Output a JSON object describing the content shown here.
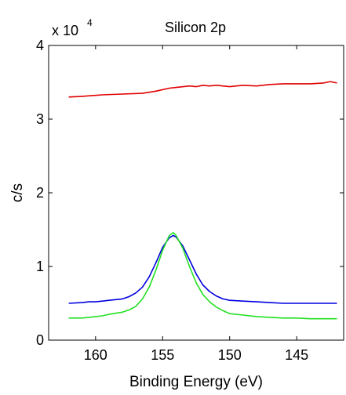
{
  "chart_data": {
    "type": "line",
    "title": "Silicon 2p",
    "xlabel": "Binding Energy (eV)",
    "ylabel": "c/s",
    "y_multiplier": {
      "base": "x 10",
      "exponent": "4"
    },
    "xlim": [
      163.5,
      141.5
    ],
    "ylim": [
      0,
      4
    ],
    "x_reversed": true,
    "x_ticks": [
      160,
      155,
      150,
      145
    ],
    "y_ticks": [
      0,
      1,
      2,
      3,
      4
    ],
    "grid": false,
    "series": [
      {
        "color": "#e00000",
        "x": [
          162,
          161,
          159.5,
          158,
          156.5,
          155.5,
          154.5,
          154,
          153,
          152.5,
          152,
          151.5,
          151,
          150,
          149.5,
          149,
          148,
          147,
          146,
          145,
          144,
          143,
          142.5,
          142
        ],
        "y": [
          3.3,
          3.31,
          3.33,
          3.34,
          3.35,
          3.38,
          3.42,
          3.43,
          3.45,
          3.44,
          3.46,
          3.45,
          3.46,
          3.44,
          3.45,
          3.46,
          3.45,
          3.47,
          3.48,
          3.48,
          3.48,
          3.49,
          3.51,
          3.49
        ]
      },
      {
        "color": "#0000e0",
        "x": [
          162,
          161,
          160.5,
          160,
          159.5,
          159,
          158,
          157.5,
          157,
          156.5,
          156,
          155.5,
          155,
          154.5,
          154.2,
          154,
          153.5,
          153,
          152.5,
          152,
          151.5,
          151,
          150.5,
          150,
          149,
          148,
          147,
          146,
          145,
          144,
          143,
          142
        ],
        "y": [
          0.5,
          0.51,
          0.52,
          0.52,
          0.53,
          0.54,
          0.56,
          0.59,
          0.64,
          0.72,
          0.86,
          1.05,
          1.26,
          1.39,
          1.42,
          1.4,
          1.28,
          1.09,
          0.9,
          0.75,
          0.66,
          0.6,
          0.56,
          0.54,
          0.53,
          0.52,
          0.51,
          0.5,
          0.5,
          0.5,
          0.5,
          0.5
        ]
      },
      {
        "color": "#22e022",
        "x": [
          162,
          161,
          160.5,
          160,
          159.5,
          159,
          158,
          157.5,
          157,
          156.5,
          156,
          155.5,
          155,
          154.5,
          154.2,
          154,
          153.5,
          153,
          152.5,
          152,
          151.5,
          151,
          150.5,
          150,
          149,
          148,
          147,
          146,
          145,
          144,
          143,
          142
        ],
        "y": [
          0.3,
          0.3,
          0.31,
          0.32,
          0.33,
          0.35,
          0.38,
          0.41,
          0.46,
          0.56,
          0.72,
          0.95,
          1.22,
          1.42,
          1.46,
          1.42,
          1.25,
          1.0,
          0.78,
          0.62,
          0.52,
          0.45,
          0.4,
          0.36,
          0.34,
          0.32,
          0.31,
          0.3,
          0.3,
          0.29,
          0.29,
          0.29
        ]
      }
    ]
  }
}
